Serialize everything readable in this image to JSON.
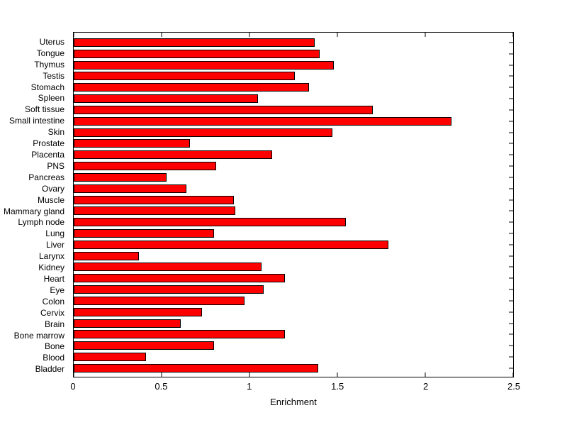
{
  "chart_data": {
    "type": "bar",
    "orientation": "horizontal",
    "title": "",
    "xlabel": "Enrichment",
    "ylabel": "",
    "xlim": [
      0,
      2.5
    ],
    "xtick_labels": [
      "0",
      "0.5",
      "1",
      "1.5",
      "2",
      "2.5"
    ],
    "xtick_values": [
      0,
      0.5,
      1,
      1.5,
      2,
      2.5
    ],
    "grid": false,
    "legend": null,
    "bar_color": "#ff0000",
    "bar_edge_color": "#000000",
    "background_color": "#ffffff",
    "categories": [
      "Uterus",
      "Tongue",
      "Thymus",
      "Testis",
      "Stomach",
      "Spleen",
      "Soft tissue",
      "Small intestine",
      "Skin",
      "Prostate",
      "Placenta",
      "PNS",
      "Pancreas",
      "Ovary",
      "Muscle",
      "Mammary gland",
      "Lymph node",
      "Lung",
      "Liver",
      "Larynx",
      "Kidney",
      "Heart",
      "Eye",
      "Colon",
      "Cervix",
      "Brain",
      "Bone marrow",
      "Bone",
      "Blood",
      "Bladder"
    ],
    "values": [
      1.37,
      1.4,
      1.48,
      1.26,
      1.34,
      1.05,
      1.7,
      2.15,
      1.47,
      0.66,
      1.13,
      0.81,
      0.53,
      0.64,
      0.91,
      0.92,
      1.55,
      0.8,
      1.79,
      0.37,
      1.07,
      1.2,
      1.08,
      0.97,
      0.73,
      0.61,
      1.2,
      0.8,
      0.41,
      1.39
    ]
  }
}
